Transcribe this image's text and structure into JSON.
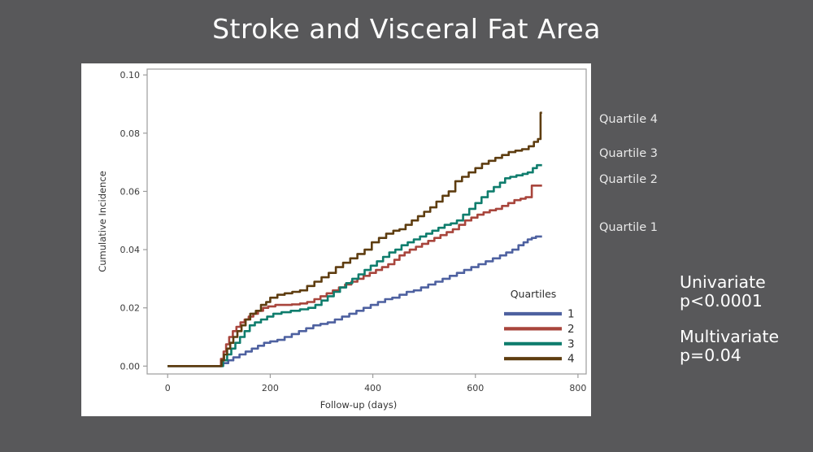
{
  "slide": {
    "title": "Stroke and Visceral Fat Area",
    "background_color": "#58585a",
    "text_color": "#ffffff"
  },
  "annotations": {
    "curve_labels": [
      {
        "text": "Quartile 4"
      },
      {
        "text": "Quartile 3"
      },
      {
        "text": "Quartile 2"
      },
      {
        "text": "Quartile 1"
      }
    ]
  },
  "stats": {
    "univariate_label": "Univariate",
    "univariate_value": "p<0.0001",
    "multivariate_label": "Multivariate",
    "multivariate_value": "p=0.04"
  },
  "chart_data": {
    "type": "line",
    "subtype": "step-cumulative-incidence",
    "xlabel": "Follow-up (days)",
    "ylabel": "Cumulative Incidence",
    "xlim": [
      -40,
      816
    ],
    "ylim": [
      -0.0027,
      0.102
    ],
    "grid": false,
    "frame": true,
    "frame_color": "#9c9c9c",
    "tick_label_color": "#3b3b3b",
    "axis_title_color": "#333333",
    "xticks": [
      {
        "value": 0,
        "label": "0"
      },
      {
        "value": 200,
        "label": "200"
      },
      {
        "value": 400,
        "label": "400"
      },
      {
        "value": 600,
        "label": "600"
      },
      {
        "value": 800,
        "label": "800"
      }
    ],
    "yticks": [
      {
        "value": 0.0,
        "label": "0.00"
      },
      {
        "value": 0.02,
        "label": "0.02"
      },
      {
        "value": 0.04,
        "label": "0.04"
      },
      {
        "value": 0.06,
        "label": "0.06"
      },
      {
        "value": 0.08,
        "label": "0.08"
      },
      {
        "value": 0.1,
        "label": "0.10"
      }
    ],
    "legend": {
      "title": "Quartiles",
      "position": "inside-bottom-right",
      "entries": [
        {
          "label": "1",
          "color": "#4e61a0"
        },
        {
          "label": "2",
          "color": "#a8453c"
        },
        {
          "label": "3",
          "color": "#0f7d6d"
        },
        {
          "label": "4",
          "color": "#5e3d10"
        }
      ]
    },
    "series": [
      {
        "name": "Quartile 1",
        "legend_label": "1",
        "color": "#4e61a0",
        "points": [
          [
            0,
            0
          ],
          [
            100,
            0
          ],
          [
            108,
            0.001
          ],
          [
            118,
            0.002
          ],
          [
            128,
            0.003
          ],
          [
            140,
            0.004
          ],
          [
            152,
            0.005
          ],
          [
            164,
            0.006
          ],
          [
            176,
            0.007
          ],
          [
            188,
            0.008
          ],
          [
            200,
            0.0085
          ],
          [
            214,
            0.009
          ],
          [
            228,
            0.01
          ],
          [
            242,
            0.011
          ],
          [
            256,
            0.012
          ],
          [
            270,
            0.013
          ],
          [
            284,
            0.014
          ],
          [
            298,
            0.0145
          ],
          [
            312,
            0.015
          ],
          [
            326,
            0.016
          ],
          [
            340,
            0.017
          ],
          [
            354,
            0.018
          ],
          [
            368,
            0.019
          ],
          [
            382,
            0.02
          ],
          [
            396,
            0.021
          ],
          [
            410,
            0.022
          ],
          [
            424,
            0.023
          ],
          [
            438,
            0.0235
          ],
          [
            452,
            0.0245
          ],
          [
            466,
            0.0255
          ],
          [
            480,
            0.026
          ],
          [
            494,
            0.027
          ],
          [
            508,
            0.028
          ],
          [
            522,
            0.029
          ],
          [
            536,
            0.03
          ],
          [
            550,
            0.031
          ],
          [
            564,
            0.032
          ],
          [
            578,
            0.033
          ],
          [
            592,
            0.034
          ],
          [
            606,
            0.035
          ],
          [
            620,
            0.036
          ],
          [
            634,
            0.037
          ],
          [
            648,
            0.038
          ],
          [
            660,
            0.039
          ],
          [
            672,
            0.04
          ],
          [
            684,
            0.0415
          ],
          [
            694,
            0.0425
          ],
          [
            702,
            0.0435
          ],
          [
            710,
            0.044
          ],
          [
            718,
            0.0445
          ],
          [
            730,
            0.0445
          ]
        ]
      },
      {
        "name": "Quartile 2",
        "legend_label": "2",
        "color": "#a8453c",
        "points": [
          [
            0,
            0
          ],
          [
            100,
            0
          ],
          [
            104,
            0.0025
          ],
          [
            109,
            0.005
          ],
          [
            114,
            0.0075
          ],
          [
            120,
            0.01
          ],
          [
            127,
            0.012
          ],
          [
            134,
            0.0135
          ],
          [
            142,
            0.015
          ],
          [
            150,
            0.016
          ],
          [
            158,
            0.017
          ],
          [
            167,
            0.018
          ],
          [
            176,
            0.019
          ],
          [
            186,
            0.02
          ],
          [
            196,
            0.0205
          ],
          [
            210,
            0.021
          ],
          [
            226,
            0.021
          ],
          [
            242,
            0.0212
          ],
          [
            258,
            0.0215
          ],
          [
            272,
            0.022
          ],
          [
            286,
            0.023
          ],
          [
            298,
            0.024
          ],
          [
            310,
            0.025
          ],
          [
            322,
            0.026
          ],
          [
            334,
            0.027
          ],
          [
            346,
            0.028
          ],
          [
            358,
            0.029
          ],
          [
            370,
            0.03
          ],
          [
            382,
            0.031
          ],
          [
            394,
            0.032
          ],
          [
            406,
            0.033
          ],
          [
            418,
            0.034
          ],
          [
            430,
            0.035
          ],
          [
            442,
            0.0365
          ],
          [
            452,
            0.038
          ],
          [
            462,
            0.039
          ],
          [
            472,
            0.04
          ],
          [
            484,
            0.041
          ],
          [
            496,
            0.042
          ],
          [
            508,
            0.043
          ],
          [
            520,
            0.044
          ],
          [
            532,
            0.045
          ],
          [
            544,
            0.046
          ],
          [
            556,
            0.047
          ],
          [
            568,
            0.0485
          ],
          [
            580,
            0.05
          ],
          [
            592,
            0.051
          ],
          [
            604,
            0.052
          ],
          [
            616,
            0.0528
          ],
          [
            628,
            0.0535
          ],
          [
            640,
            0.054
          ],
          [
            652,
            0.055
          ],
          [
            664,
            0.056
          ],
          [
            676,
            0.057
          ],
          [
            688,
            0.0575
          ],
          [
            698,
            0.058
          ],
          [
            710,
            0.062
          ],
          [
            730,
            0.062
          ]
        ]
      },
      {
        "name": "Quartile 3",
        "legend_label": "3",
        "color": "#0f7d6d",
        "points": [
          [
            0,
            0
          ],
          [
            100,
            0
          ],
          [
            108,
            0.002
          ],
          [
            116,
            0.004
          ],
          [
            124,
            0.006
          ],
          [
            132,
            0.008
          ],
          [
            141,
            0.01
          ],
          [
            150,
            0.012
          ],
          [
            160,
            0.014
          ],
          [
            170,
            0.015
          ],
          [
            182,
            0.016
          ],
          [
            194,
            0.017
          ],
          [
            206,
            0.018
          ],
          [
            222,
            0.0185
          ],
          [
            240,
            0.019
          ],
          [
            258,
            0.0195
          ],
          [
            274,
            0.02
          ],
          [
            288,
            0.021
          ],
          [
            300,
            0.0225
          ],
          [
            312,
            0.024
          ],
          [
            324,
            0.0255
          ],
          [
            336,
            0.027
          ],
          [
            348,
            0.0285
          ],
          [
            360,
            0.03
          ],
          [
            372,
            0.0315
          ],
          [
            384,
            0.033
          ],
          [
            396,
            0.0345
          ],
          [
            408,
            0.036
          ],
          [
            420,
            0.0375
          ],
          [
            432,
            0.039
          ],
          [
            444,
            0.04
          ],
          [
            456,
            0.0415
          ],
          [
            468,
            0.0425
          ],
          [
            480,
            0.0435
          ],
          [
            492,
            0.0445
          ],
          [
            504,
            0.0455
          ],
          [
            516,
            0.0465
          ],
          [
            528,
            0.0475
          ],
          [
            540,
            0.0485
          ],
          [
            552,
            0.049
          ],
          [
            564,
            0.05
          ],
          [
            576,
            0.052
          ],
          [
            588,
            0.054
          ],
          [
            600,
            0.056
          ],
          [
            612,
            0.058
          ],
          [
            624,
            0.06
          ],
          [
            636,
            0.0615
          ],
          [
            648,
            0.063
          ],
          [
            658,
            0.0645
          ],
          [
            668,
            0.065
          ],
          [
            680,
            0.0655
          ],
          [
            692,
            0.066
          ],
          [
            702,
            0.0665
          ],
          [
            712,
            0.068
          ],
          [
            720,
            0.069
          ],
          [
            730,
            0.069
          ]
        ]
      },
      {
        "name": "Quartile 4",
        "legend_label": "4",
        "color": "#5e3d10",
        "points": [
          [
            0,
            0
          ],
          [
            100,
            0
          ],
          [
            105,
            0.002
          ],
          [
            110,
            0.004
          ],
          [
            116,
            0.006
          ],
          [
            122,
            0.008
          ],
          [
            128,
            0.01
          ],
          [
            136,
            0.012
          ],
          [
            144,
            0.014
          ],
          [
            152,
            0.016
          ],
          [
            161,
            0.018
          ],
          [
            172,
            0.019
          ],
          [
            182,
            0.021
          ],
          [
            192,
            0.022
          ],
          [
            200,
            0.0235
          ],
          [
            214,
            0.0245
          ],
          [
            228,
            0.025
          ],
          [
            243,
            0.0255
          ],
          [
            258,
            0.026
          ],
          [
            272,
            0.0275
          ],
          [
            286,
            0.029
          ],
          [
            300,
            0.0305
          ],
          [
            314,
            0.032
          ],
          [
            328,
            0.034
          ],
          [
            342,
            0.0355
          ],
          [
            356,
            0.037
          ],
          [
            370,
            0.0385
          ],
          [
            384,
            0.04
          ],
          [
            398,
            0.0425
          ],
          [
            412,
            0.044
          ],
          [
            426,
            0.0455
          ],
          [
            440,
            0.0465
          ],
          [
            452,
            0.047
          ],
          [
            464,
            0.0485
          ],
          [
            476,
            0.05
          ],
          [
            488,
            0.0515
          ],
          [
            500,
            0.053
          ],
          [
            512,
            0.0545
          ],
          [
            524,
            0.0565
          ],
          [
            536,
            0.0585
          ],
          [
            548,
            0.06
          ],
          [
            561,
            0.0635
          ],
          [
            574,
            0.065
          ],
          [
            587,
            0.0665
          ],
          [
            600,
            0.068
          ],
          [
            613,
            0.0695
          ],
          [
            626,
            0.0705
          ],
          [
            639,
            0.0715
          ],
          [
            652,
            0.0725
          ],
          [
            665,
            0.0735
          ],
          [
            678,
            0.074
          ],
          [
            691,
            0.0745
          ],
          [
            704,
            0.0755
          ],
          [
            714,
            0.077
          ],
          [
            722,
            0.078
          ],
          [
            727,
            0.087
          ],
          [
            730,
            0.087
          ]
        ]
      }
    ]
  }
}
